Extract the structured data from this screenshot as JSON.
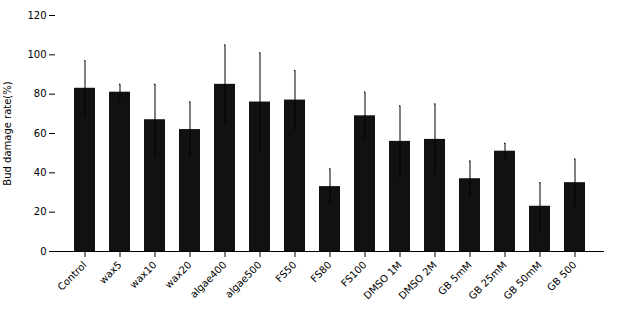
{
  "chart_data": {
    "type": "bar",
    "categories": [
      "Control",
      "wax5",
      "wax10",
      "wax20",
      "algae400",
      "algae500",
      "FS50",
      "FS80",
      "FS100",
      "DMSO 1M",
      "DMSO 2M",
      "GB 5mM",
      "GB 25mM",
      "GB 50mM",
      "GB 500"
    ],
    "values": [
      83,
      81,
      67,
      62,
      85,
      76,
      77,
      33,
      69,
      56,
      57,
      37,
      51,
      23,
      35
    ],
    "errors": [
      14,
      4,
      18,
      14,
      20,
      25,
      15,
      9,
      12,
      18,
      18,
      9,
      4,
      12,
      12
    ],
    "color": "#111111",
    "ylabel": "Bud damage rate(%)",
    "ylim": [
      0,
      120
    ],
    "yticks": [
      0,
      20,
      40,
      60,
      80,
      100,
      120
    ]
  }
}
